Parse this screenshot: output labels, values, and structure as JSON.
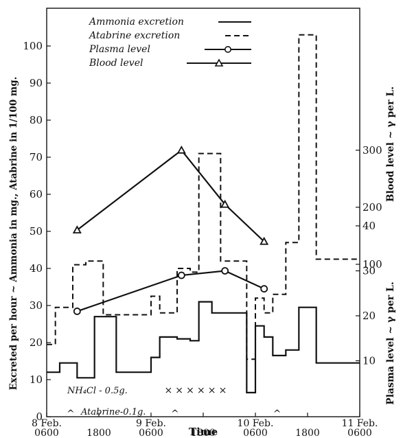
{
  "chart_data": {
    "type": "line",
    "xlabel": "Time",
    "ylabel_left": "Excreted per hour ~ Ammonia in mg., Atabrine in 1/100 mg.",
    "ylabel_right_top": "Blood level ~ γ per L.",
    "ylabel_right_bottom": "Plasma level ~ γ per L.",
    "x_ticks": [
      {
        "x": 0,
        "label": "8 Feb.",
        "sub": "0600"
      },
      {
        "x": 12,
        "label": "",
        "sub": "1800"
      },
      {
        "x": 24,
        "label": "9 Feb.",
        "sub": "0600"
      },
      {
        "x": 36,
        "label": "",
        "sub": "1800"
      },
      {
        "x": 48,
        "label": "10 Feb.",
        "sub": "0600"
      },
      {
        "x": 60,
        "label": "",
        "sub": "1800"
      },
      {
        "x": 72,
        "label": "11 Feb.",
        "sub": "0600"
      }
    ],
    "y_left_ticks": [
      0,
      10,
      20,
      30,
      40,
      50,
      60,
      70,
      80,
      90,
      100
    ],
    "y_left_lim": [
      0,
      108
    ],
    "y_right_blood_ticks": [
      100,
      200,
      300
    ],
    "y_right_plasma_ticks": [
      10,
      20,
      30,
      40
    ],
    "legend": [
      {
        "label": "Ammonia excretion",
        "style": "solid"
      },
      {
        "label": "Atabrine excretion",
        "style": "dashed"
      },
      {
        "label": "Plasma level",
        "style": "circle"
      },
      {
        "label": "Blood level",
        "style": "triangle"
      }
    ],
    "series": [
      {
        "name": "Ammonia excretion",
        "kind": "step",
        "steps": [
          [
            0,
            3,
            12
          ],
          [
            3,
            7,
            14.5
          ],
          [
            7,
            11,
            10.5
          ],
          [
            11,
            16,
            27
          ],
          [
            16,
            24,
            12
          ],
          [
            24,
            26,
            16
          ],
          [
            26,
            30,
            21.5
          ],
          [
            30,
            33,
            21
          ],
          [
            33,
            35,
            20.5
          ],
          [
            35,
            38,
            31
          ],
          [
            38,
            46,
            28
          ],
          [
            46,
            48,
            6.5
          ],
          [
            48,
            50,
            24.5
          ],
          [
            50,
            52,
            21.5
          ],
          [
            52,
            55,
            16.5
          ],
          [
            55,
            58,
            18
          ],
          [
            58,
            62,
            29.5
          ],
          [
            62,
            72,
            14.5
          ]
        ]
      },
      {
        "name": "Atabrine excretion",
        "kind": "step",
        "steps": [
          [
            0,
            2,
            19.5
          ],
          [
            2,
            6,
            29.5
          ],
          [
            6,
            9,
            41
          ],
          [
            9,
            13,
            42
          ],
          [
            13,
            24,
            27.5
          ],
          [
            24,
            26,
            32.5
          ],
          [
            26,
            30,
            28
          ],
          [
            30,
            33,
            40
          ],
          [
            33,
            35,
            39
          ],
          [
            35,
            40,
            71
          ],
          [
            40,
            46,
            42
          ],
          [
            46,
            48,
            15.5
          ],
          [
            48,
            50,
            32
          ],
          [
            50,
            52,
            28
          ],
          [
            52,
            55,
            33
          ],
          [
            55,
            58,
            47
          ],
          [
            58,
            62,
            103
          ],
          [
            62,
            72,
            42.5
          ]
        ]
      },
      {
        "name": "Plasma level",
        "kind": "line-circle",
        "axis": "plasma",
        "x": [
          7,
          31,
          41,
          50
        ],
        "y": [
          21,
          29,
          30,
          26
        ]
      },
      {
        "name": "Blood level",
        "kind": "line-triangle",
        "axis": "blood",
        "x": [
          7,
          31,
          41,
          50
        ],
        "y": [
          160,
          300,
          205,
          140
        ]
      }
    ],
    "annotations": {
      "nh4cl_label": "NH₄Cl - 0.5g.",
      "nh4cl_marks_x": [
        28,
        30.5,
        33,
        35.5,
        38,
        40.5
      ],
      "atabrine_label": "Atabrine-0.1g.",
      "atabrine_marks_x": [
        5.5,
        29.5,
        53
      ]
    }
  }
}
